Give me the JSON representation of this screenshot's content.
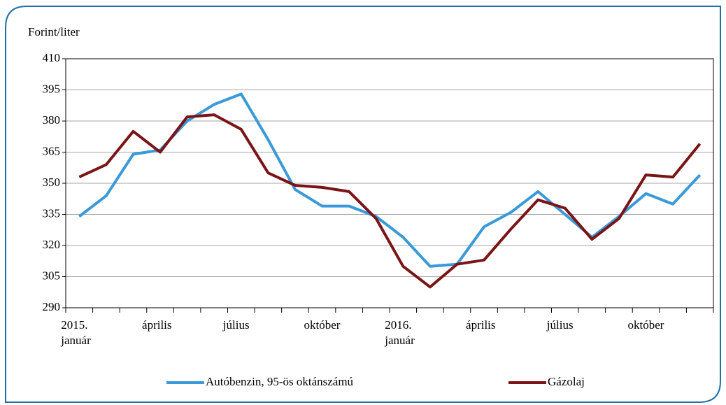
{
  "chart_data": {
    "type": "line",
    "y_label": "Forint/liter",
    "categories": [
      "2015.\njanuár",
      null,
      null,
      "április",
      null,
      null,
      "július",
      null,
      null,
      "október",
      null,
      null,
      "2016.\njanuár",
      null,
      null,
      "április",
      null,
      null,
      "július",
      null,
      null,
      "október",
      null,
      null
    ],
    "series": [
      {
        "name": "Autóbenzin, 95-ös oktánszámú",
        "color": "#3a9ad9",
        "values": [
          334,
          344,
          364,
          366,
          380,
          388,
          393,
          371,
          347,
          339,
          339,
          334,
          324,
          310,
          311,
          329,
          336,
          346,
          335,
          324,
          334,
          345,
          340,
          354
        ]
      },
      {
        "name": "Gázolaj",
        "color": "#7b1416",
        "values": [
          353,
          359,
          375,
          365,
          382,
          383,
          376,
          355,
          349,
          348,
          346,
          333,
          310,
          300,
          311,
          313,
          328,
          342,
          338,
          323,
          333,
          354,
          353,
          369
        ]
      }
    ],
    "ylim": [
      290,
      410
    ],
    "yticks": [
      290,
      305,
      320,
      335,
      350,
      365,
      380,
      395,
      410
    ],
    "grid": true
  }
}
